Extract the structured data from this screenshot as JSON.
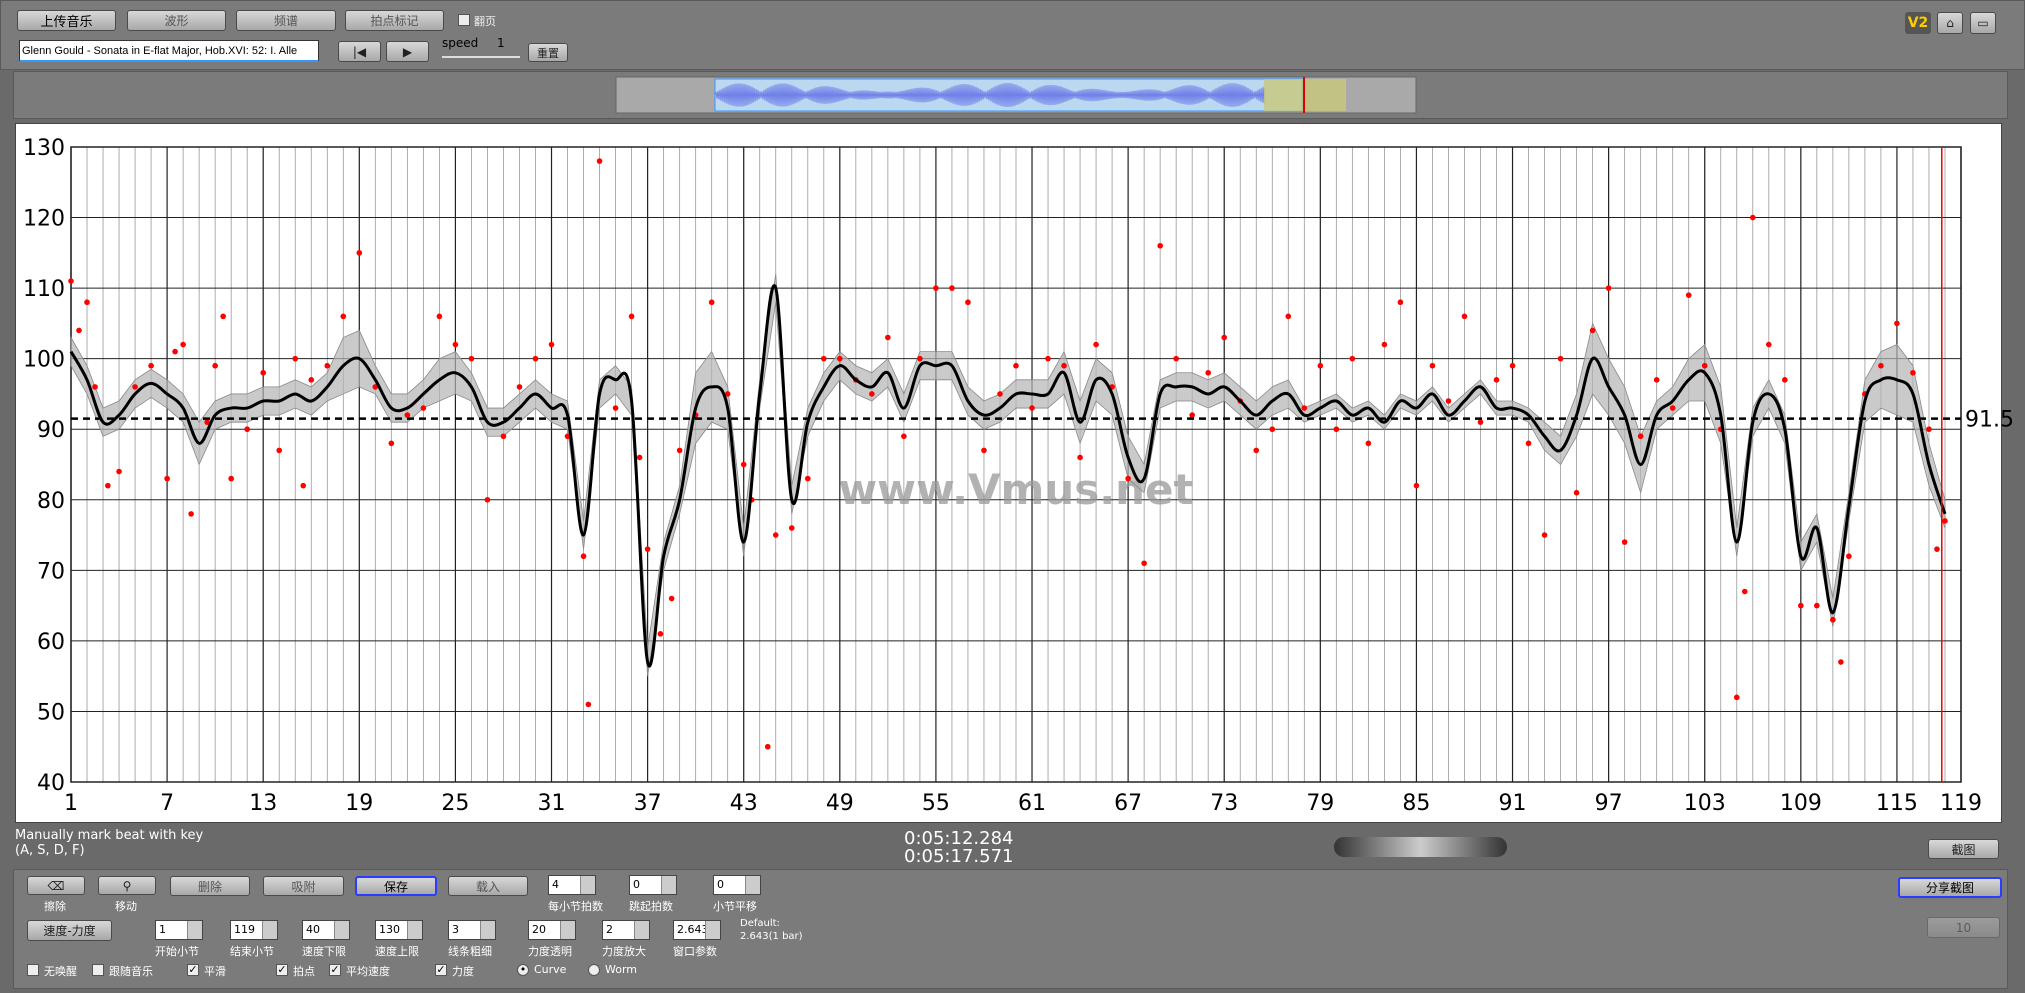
{
  "toolbar": {
    "buttons": [
      "上传音乐",
      "波形",
      "频谱",
      "拍点标记"
    ],
    "checkbox": "翻页",
    "file": "Glenn Gould - Sonata in E-flat Major, Hob.XVI: 52: I. Alle",
    "speed_label": "speed",
    "speed": "1",
    "reset": "重置",
    "badge": "V2"
  },
  "status": {
    "hint": [
      "Manually mark beat with key",
      "(A, S, D, F)"
    ],
    "times": [
      "0:05:12.284",
      "0:05:17.571"
    ],
    "screenshot": "截图"
  },
  "controls": {
    "tools": [
      "擦除",
      "移动"
    ],
    "buttons": [
      "删除",
      "吸附",
      "保存",
      "载入"
    ],
    "spinners_top": [
      {
        "value": "4",
        "label": "每小节拍数"
      },
      {
        "value": "0",
        "label": "跳起拍数"
      },
      {
        "value": "0",
        "label": "小节平移"
      }
    ],
    "share": "分享截图",
    "disabled": "10",
    "mode": "速度-力度",
    "spinners": [
      {
        "value": "1",
        "label": "开始小节"
      },
      {
        "value": "119",
        "label": "结束小节"
      },
      {
        "value": "40",
        "label": "速度下限"
      },
      {
        "value": "130",
        "label": "速度上限"
      },
      {
        "value": "3",
        "label": "线条粗细"
      },
      {
        "value": "20",
        "label": "力度透明"
      },
      {
        "value": "2",
        "label": "力度放大"
      },
      {
        "value": "2.643",
        "label": "窗口参数"
      }
    ],
    "default": [
      "Default:",
      "2.643(1 bar)"
    ],
    "checkboxes": [
      {
        "label": "无唤醒",
        "checked": false
      },
      {
        "label": "跟随音乐",
        "checked": false
      },
      {
        "label": "平滑",
        "checked": true
      },
      {
        "label": "拍点",
        "checked": true
      },
      {
        "label": "平均速度",
        "checked": true
      },
      {
        "label": "力度",
        "checked": true
      }
    ],
    "radios": [
      {
        "label": "Curve",
        "checked": true
      },
      {
        "label": "Worm",
        "checked": false
      }
    ]
  },
  "chart_data": {
    "type": "line",
    "xlim": [
      1,
      119
    ],
    "ylim": [
      40,
      130
    ],
    "xticks": [
      1,
      7,
      13,
      19,
      25,
      31,
      37,
      43,
      49,
      55,
      61,
      67,
      73,
      79,
      85,
      91,
      97,
      103,
      109,
      115,
      119
    ],
    "yticks": [
      40,
      50,
      60,
      70,
      80,
      90,
      100,
      110,
      120,
      130
    ],
    "grid": true,
    "x": [
      1,
      2,
      3,
      4,
      5,
      6,
      7,
      8,
      9,
      10,
      11,
      12,
      13,
      14,
      15,
      16,
      17,
      18,
      19,
      20,
      21,
      22,
      23,
      24,
      25,
      26,
      27,
      28,
      29,
      30,
      31,
      32,
      33,
      34,
      35,
      36,
      37,
      38,
      39,
      40,
      41,
      42,
      43,
      44,
      45,
      46,
      47,
      48,
      49,
      50,
      51,
      52,
      53,
      54,
      55,
      56,
      57,
      58,
      59,
      60,
      61,
      62,
      63,
      64,
      65,
      66,
      67,
      68,
      69,
      70,
      71,
      72,
      73,
      74,
      75,
      76,
      77,
      78,
      79,
      80,
      81,
      82,
      83,
      84,
      85,
      86,
      87,
      88,
      89,
      90,
      91,
      92,
      93,
      94,
      95,
      96,
      97,
      98,
      99,
      100,
      101,
      102,
      103,
      104,
      105,
      106,
      107,
      108,
      109,
      110,
      111,
      112,
      113,
      114,
      115,
      116,
      117,
      118
    ],
    "series": [
      {
        "color": "#000000",
        "values": [
          101,
          97,
          91,
          92,
          95,
          96.5,
          95,
          93,
          88,
          92,
          93,
          93,
          94,
          94,
          95,
          94,
          96,
          99,
          100,
          97,
          93,
          93,
          95,
          97,
          98,
          96,
          91,
          91,
          93,
          95,
          93,
          92,
          75,
          95,
          97,
          94,
          57,
          72,
          80,
          93,
          96,
          93,
          74,
          95,
          110,
          80,
          91,
          96,
          99,
          97,
          96,
          98,
          93,
          99,
          99,
          99,
          94,
          92,
          93,
          95,
          95,
          95,
          98,
          91,
          97,
          95,
          86,
          83,
          95,
          96,
          96,
          95,
          96,
          94,
          92,
          94,
          95,
          92,
          93,
          94,
          92,
          93,
          91,
          94,
          93,
          95,
          92,
          94,
          96,
          93,
          93,
          92,
          89,
          87,
          92,
          100,
          96,
          92,
          85,
          92,
          94,
          97,
          98,
          92,
          74,
          91,
          95,
          90,
          72,
          76,
          64,
          79,
          94,
          97,
          97,
          95,
          85,
          78
        ]
      }
    ],
    "band": {
      "color": "#b4b4b4",
      "upper": [
        103,
        99,
        93,
        94,
        97,
        98.5,
        97,
        95,
        91,
        94,
        95,
        95,
        96,
        96,
        97,
        96,
        98,
        103,
        104,
        99,
        95,
        95,
        97,
        100,
        101,
        98,
        93,
        93,
        95,
        97,
        95,
        94,
        77,
        97,
        99,
        96,
        59,
        74,
        82,
        98,
        101,
        96,
        76,
        97,
        112,
        82,
        93,
        98,
        101,
        99,
        98,
        100,
        95,
        101,
        101,
        101,
        96,
        94,
        95,
        97,
        97,
        97,
        101,
        94,
        100,
        98,
        89,
        85,
        97,
        98,
        98,
        97,
        98,
        96,
        94,
        96,
        97,
        93,
        94,
        95,
        93,
        94,
        92,
        95,
        94,
        96,
        93,
        95,
        97,
        94,
        94,
        93,
        91,
        89,
        95,
        105,
        100,
        96,
        89,
        94,
        96,
        100,
        102,
        96,
        76,
        93,
        97,
        92,
        74,
        78,
        66,
        81,
        97,
        101,
        102,
        99,
        88,
        80
      ],
      "lower": [
        99,
        95,
        89,
        90,
        93,
        94.5,
        93,
        91,
        85,
        90,
        91,
        91,
        92,
        92,
        93,
        92,
        94,
        95,
        96,
        95,
        91,
        91,
        93,
        94,
        95,
        94,
        89,
        89,
        91,
        93,
        91,
        90,
        73,
        93,
        95,
        92,
        55,
        70,
        78,
        88,
        91,
        90,
        72,
        93,
        108,
        78,
        89,
        94,
        97,
        95,
        94,
        96,
        91,
        97,
        97,
        97,
        92,
        90,
        91,
        93,
        93,
        93,
        95,
        88,
        94,
        92,
        83,
        81,
        93,
        94,
        94,
        93,
        94,
        92,
        90,
        92,
        93,
        91,
        92,
        93,
        91,
        92,
        90,
        93,
        92,
        94,
        91,
        93,
        95,
        92,
        92,
        91,
        87,
        85,
        89,
        95,
        92,
        88,
        81,
        90,
        92,
        94,
        94,
        88,
        72,
        89,
        93,
        88,
        70,
        74,
        62,
        77,
        91,
        93,
        92,
        91,
        82,
        76
      ]
    },
    "points": {
      "color": "#ff0000",
      "x": [
        1,
        1.5,
        2,
        2.5,
        3.3,
        4,
        5,
        6,
        7,
        7.5,
        8,
        8.5,
        9.5,
        10,
        10.5,
        11,
        12,
        13,
        14,
        15,
        15.5,
        16,
        17,
        18,
        19,
        20,
        21,
        22,
        23,
        24,
        25,
        26,
        27,
        28,
        29,
        30,
        31,
        32,
        33,
        33.3,
        34,
        35,
        36,
        36.5,
        37,
        37.8,
        38.5,
        39,
        40,
        41,
        42,
        43,
        43.5,
        44.5,
        45,
        46,
        47,
        48,
        49,
        50,
        51,
        52,
        53,
        54,
        55,
        56,
        57,
        58,
        59,
        60,
        61,
        62,
        63,
        64,
        65,
        66,
        67,
        68,
        69,
        70,
        71,
        72,
        73,
        74,
        75,
        76,
        77,
        78,
        79,
        80,
        81,
        82,
        83,
        84,
        85,
        86,
        87,
        88,
        89,
        90,
        91,
        92,
        93,
        94,
        95,
        96,
        97,
        98,
        99,
        100,
        101,
        102,
        103,
        104,
        105,
        105.5,
        106,
        107,
        108,
        109,
        110,
        111,
        111.5,
        112,
        113,
        114,
        115,
        116,
        117,
        117.5,
        118
      ],
      "y": [
        111,
        104,
        108,
        96,
        82,
        84,
        96,
        99,
        83,
        101,
        102,
        78,
        91,
        99,
        106,
        83,
        90,
        98,
        87,
        100,
        82,
        97,
        99,
        106,
        115,
        96,
        88,
        92,
        93,
        106,
        102,
        100,
        80,
        89,
        96,
        100,
        102,
        89,
        72,
        51,
        128,
        93,
        106,
        86,
        73,
        61,
        66,
        87,
        92,
        108,
        95,
        85,
        80,
        45,
        75,
        76,
        83,
        100,
        100,
        97,
        95,
        103,
        89,
        100,
        110,
        110,
        108,
        87,
        95,
        99,
        93,
        100,
        99,
        86,
        102,
        96,
        83,
        71,
        116,
        100,
        92,
        98,
        103,
        94,
        87,
        90,
        106,
        93,
        99,
        90,
        100,
        88,
        102,
        108,
        82,
        99,
        94,
        106,
        91,
        97,
        99,
        88,
        75,
        100,
        81,
        104,
        110,
        74,
        89,
        97,
        93,
        109,
        99,
        90,
        52,
        67,
        120,
        102,
        97,
        65,
        65,
        63,
        57,
        72,
        95,
        99,
        105,
        98,
        90,
        73,
        77
      ]
    },
    "mean": 91.5,
    "playhead": 117.8,
    "watermark": "www.Vmus.net"
  }
}
